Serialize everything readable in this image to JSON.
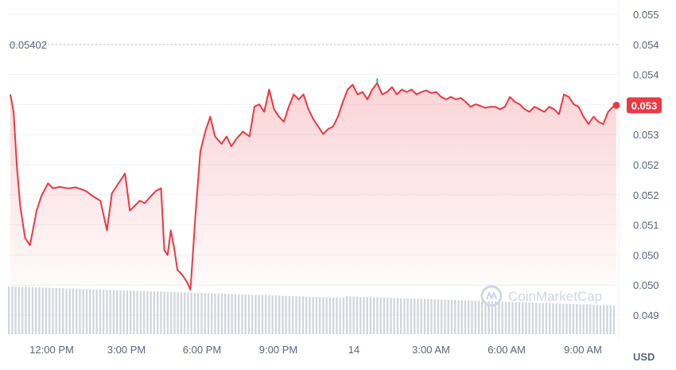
{
  "chart_data": {
    "type": "area",
    "x_tick_labels": [
      "12:00 PM",
      "3:00 PM",
      "6:00 PM",
      "9:00 PM",
      "14",
      "3:00 AM",
      "6:00 AM",
      "9:00 AM"
    ],
    "y_tick_labels": [
      "0.055",
      "0.054",
      "0.054",
      "0.053",
      "0.053",
      "0.052",
      "0.052",
      "0.051",
      "0.050",
      "0.050",
      "0.049"
    ],
    "ylim": [
      0.0489,
      0.0555
    ],
    "reference_line": {
      "label": "0.05402",
      "value": 0.05402
    },
    "current_price": {
      "label": "0.053",
      "value": 0.05353
    },
    "unit": "USD",
    "watermark": "CoinMarketCap",
    "grid": "horizontal",
    "colors": {
      "line": "#ea3943",
      "area_top": "#fbd3d6",
      "badge": "#ea3943",
      "volume": "#d1d6dc",
      "grid": "#eff2f5",
      "up_tick": "#16c784"
    },
    "series": [
      {
        "values": [
          [
            0.0,
            0.05375
          ],
          [
            0.2,
            0.0534
          ],
          [
            0.4,
            0.0523
          ],
          [
            0.6,
            0.0515
          ],
          [
            0.9,
            0.05085
          ],
          [
            1.2,
            0.0507
          ],
          [
            1.6,
            0.0514
          ],
          [
            1.9,
            0.0517
          ],
          [
            2.3,
            0.05195
          ],
          [
            2.6,
            0.05185
          ],
          [
            3.0,
            0.05188
          ],
          [
            3.5,
            0.05185
          ],
          [
            4.0,
            0.05187
          ],
          [
            4.6,
            0.0518
          ],
          [
            5.0,
            0.0517
          ],
          [
            5.5,
            0.0516
          ],
          [
            5.9,
            0.051
          ],
          [
            6.2,
            0.05175
          ],
          [
            6.6,
            0.05195
          ],
          [
            7.0,
            0.05215
          ],
          [
            7.3,
            0.0514
          ],
          [
            7.6,
            0.0515
          ],
          [
            7.9,
            0.0516
          ],
          [
            8.2,
            0.05155
          ],
          [
            8.6,
            0.0517
          ],
          [
            8.9,
            0.0518
          ],
          [
            9.2,
            0.05185
          ],
          [
            9.4,
            0.0506
          ],
          [
            9.6,
            0.0505
          ],
          [
            9.8,
            0.051
          ],
          [
            10.0,
            0.05065
          ],
          [
            10.2,
            0.0502
          ],
          [
            10.5,
            0.0501
          ],
          [
            10.8,
            0.04995
          ],
          [
            11.0,
            0.0498
          ],
          [
            11.3,
            0.0513
          ],
          [
            11.6,
            0.0526
          ],
          [
            11.9,
            0.053
          ],
          [
            12.2,
            0.0533
          ],
          [
            12.5,
            0.0529
          ],
          [
            12.9,
            0.05275
          ],
          [
            13.2,
            0.0529
          ],
          [
            13.5,
            0.0527
          ],
          [
            13.8,
            0.05285
          ],
          [
            14.2,
            0.053
          ],
          [
            14.6,
            0.0529
          ],
          [
            14.9,
            0.0535
          ],
          [
            15.2,
            0.05355
          ],
          [
            15.5,
            0.0534
          ],
          [
            15.8,
            0.05385
          ],
          [
            16.1,
            0.05345
          ],
          [
            16.4,
            0.0533
          ],
          [
            16.7,
            0.0532
          ],
          [
            17.0,
            0.0535
          ],
          [
            17.3,
            0.05375
          ],
          [
            17.6,
            0.05365
          ],
          [
            17.9,
            0.05375
          ],
          [
            18.2,
            0.05345
          ],
          [
            18.5,
            0.05325
          ],
          [
            18.8,
            0.0531
          ],
          [
            19.1,
            0.05295
          ],
          [
            19.4,
            0.05305
          ],
          [
            19.7,
            0.0531
          ],
          [
            20.0,
            0.0533
          ],
          [
            20.3,
            0.0536
          ],
          [
            20.6,
            0.05385
          ],
          [
            20.9,
            0.05395
          ],
          [
            21.2,
            0.05375
          ],
          [
            21.5,
            0.0538
          ],
          [
            21.8,
            0.05365
          ],
          [
            22.1,
            0.05385
          ],
          [
            22.4,
            0.05398
          ],
          [
            22.7,
            0.05375
          ],
          [
            23.0,
            0.0538
          ],
          [
            23.3,
            0.0539
          ],
          [
            23.6,
            0.05375
          ],
          [
            23.9,
            0.05385
          ],
          [
            24.2,
            0.0538
          ],
          [
            24.5,
            0.05385
          ],
          [
            24.8,
            0.05375
          ],
          [
            25.1,
            0.0538
          ],
          [
            25.4,
            0.05383
          ],
          [
            25.7,
            0.05378
          ],
          [
            26.0,
            0.0538
          ],
          [
            26.3,
            0.0537
          ],
          [
            26.6,
            0.05365
          ],
          [
            26.9,
            0.0537
          ],
          [
            27.2,
            0.05365
          ],
          [
            27.5,
            0.05368
          ],
          [
            27.8,
            0.0536
          ],
          [
            28.1,
            0.0535
          ],
          [
            28.4,
            0.05355
          ],
          [
            28.7,
            0.05352
          ],
          [
            29.0,
            0.05348
          ],
          [
            29.3,
            0.0535
          ],
          [
            29.6,
            0.0535
          ],
          [
            29.9,
            0.05345
          ],
          [
            30.2,
            0.0535
          ],
          [
            30.5,
            0.0537
          ],
          [
            30.8,
            0.0536
          ],
          [
            31.1,
            0.05355
          ],
          [
            31.4,
            0.05345
          ],
          [
            31.7,
            0.0534
          ],
          [
            32.0,
            0.0535
          ],
          [
            32.3,
            0.05345
          ],
          [
            32.6,
            0.0534
          ],
          [
            32.9,
            0.0535
          ],
          [
            33.2,
            0.05345
          ],
          [
            33.5,
            0.05335
          ],
          [
            33.8,
            0.05375
          ],
          [
            34.1,
            0.0537
          ],
          [
            34.4,
            0.05355
          ],
          [
            34.7,
            0.0535
          ],
          [
            35.0,
            0.0533
          ],
          [
            35.3,
            0.05315
          ],
          [
            35.6,
            0.0533
          ],
          [
            35.9,
            0.0532
          ],
          [
            36.2,
            0.05315
          ],
          [
            36.5,
            0.0534
          ],
          [
            36.8,
            0.0535
          ],
          [
            37.0,
            0.05353
          ]
        ]
      }
    ]
  }
}
